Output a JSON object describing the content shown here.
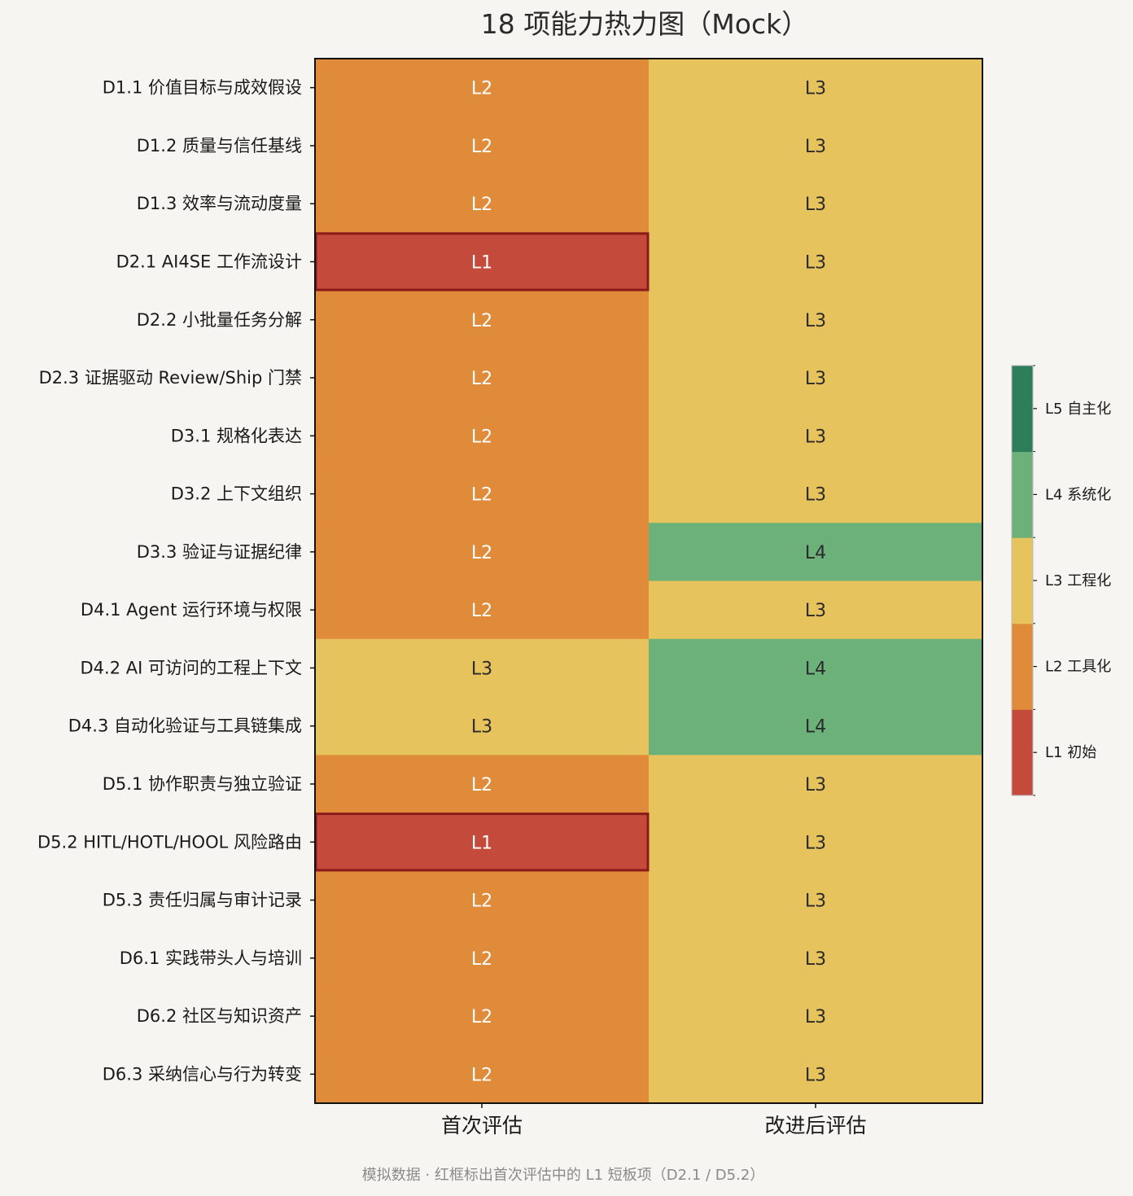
{
  "chart_data": {
    "type": "heatmap",
    "title": "18 项能力热力图（Mock）",
    "columns": [
      "首次评估",
      "改进后评估"
    ],
    "rows": [
      "D1.1 价值目标与成效假设",
      "D1.2 质量与信任基线",
      "D1.3 效率与流动度量",
      "D2.1 AI4SE 工作流设计",
      "D2.2 小批量任务分解",
      "D2.3 证据驱动 Review/Ship 门禁",
      "D3.1 规格化表达",
      "D3.2 上下文组织",
      "D3.3 验证与证据纪律",
      "D4.1 Agent 运行环境与权限",
      "D4.2 AI 可访问的工程上下文",
      "D4.3 自动化验证与工具链集成",
      "D5.1 协作职责与独立验证",
      "D5.2 HITL/HOTL/HOOL 风险路由",
      "D5.3 责任归属与审计记录",
      "D6.1 实践带头人与培训",
      "D6.2 社区与知识资产",
      "D6.3 采纳信心与行为转变"
    ],
    "values": [
      [
        2,
        3
      ],
      [
        2,
        3
      ],
      [
        2,
        3
      ],
      [
        1,
        3
      ],
      [
        2,
        3
      ],
      [
        2,
        3
      ],
      [
        2,
        3
      ],
      [
        2,
        3
      ],
      [
        2,
        4
      ],
      [
        2,
        3
      ],
      [
        3,
        4
      ],
      [
        3,
        4
      ],
      [
        2,
        3
      ],
      [
        1,
        3
      ],
      [
        2,
        3
      ],
      [
        2,
        3
      ],
      [
        2,
        3
      ],
      [
        2,
        3
      ]
    ],
    "cell_label_prefix": "L",
    "highlighted_cells": [
      {
        "row": "D2.1 AI4SE 工作流设计",
        "column": "首次评估"
      },
      {
        "row": "D5.2 HITL/HOTL/HOOL 风险路由",
        "column": "首次评估"
      }
    ],
    "highlight_color": "#8b1a1a",
    "levels": [
      {
        "value": 1,
        "label": "L1 初始",
        "color": "#c44b3b"
      },
      {
        "value": 2,
        "label": "L2 工具化",
        "color": "#e08b3a"
      },
      {
        "value": 3,
        "label": "L3 工程化",
        "color": "#e6c35c"
      },
      {
        "value": 4,
        "label": "L4 系统化",
        "color": "#6cb07a"
      },
      {
        "value": 5,
        "label": "L5 自主化",
        "color": "#2e7d5b"
      }
    ],
    "colorbar": "right",
    "footnote": "模拟数据 · 红框标出首次评估中的 L1 短板项（D2.1 / D5.2）"
  }
}
